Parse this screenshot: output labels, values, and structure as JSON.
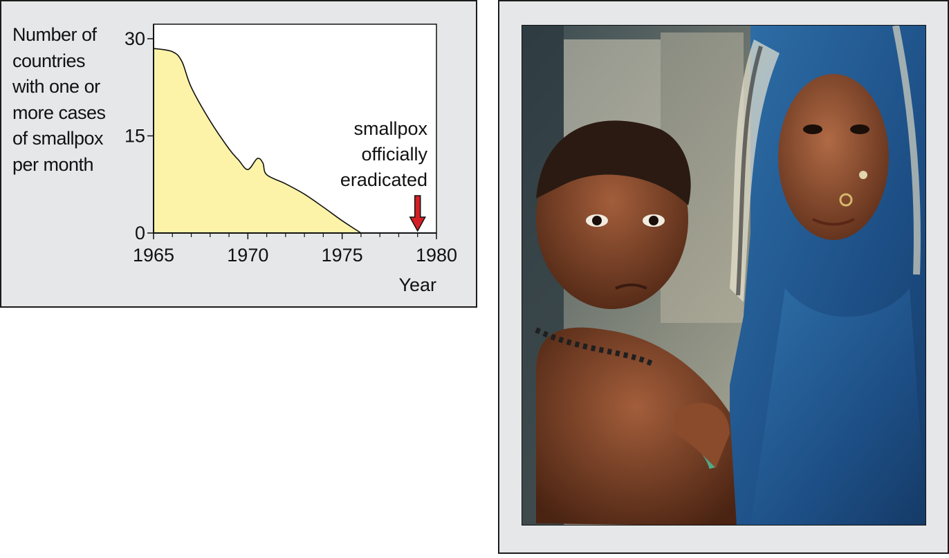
{
  "chart_data": {
    "type": "area",
    "title": "",
    "ylabel_lines": [
      "Number of",
      "countries",
      "with one or",
      "more cases",
      "of smallpox",
      "per month"
    ],
    "xlabel": "Year",
    "xlim": [
      1965,
      1980
    ],
    "ylim": [
      0,
      30
    ],
    "x_ticks": [
      "1965",
      "1970",
      "1975",
      "1980"
    ],
    "y_ticks": [
      "0",
      "15",
      "30"
    ],
    "series": [
      {
        "x": [
          1965,
          1966,
          1966.5,
          1967,
          1968,
          1969,
          1969.5,
          1970,
          1970.5,
          1970.8,
          1971,
          1972,
          1973,
          1974,
          1975,
          1976
        ],
        "values": [
          28.5,
          28.0,
          26.5,
          22.5,
          17.3,
          13.0,
          11.3,
          9.8,
          11.5,
          10.8,
          9.0,
          7.6,
          6.0,
          4.0,
          1.9,
          0
        ]
      }
    ],
    "annotation": {
      "lines": [
        "smallpox",
        "officially",
        "eradicated"
      ],
      "x": 1979
    },
    "colors": {
      "fill": "#fcf3a8",
      "arrow": "#d51f26",
      "line": "#111111"
    },
    "grid": false,
    "legend": "none"
  },
  "photo": {
    "description_icon": "photo-mother-and-child"
  }
}
